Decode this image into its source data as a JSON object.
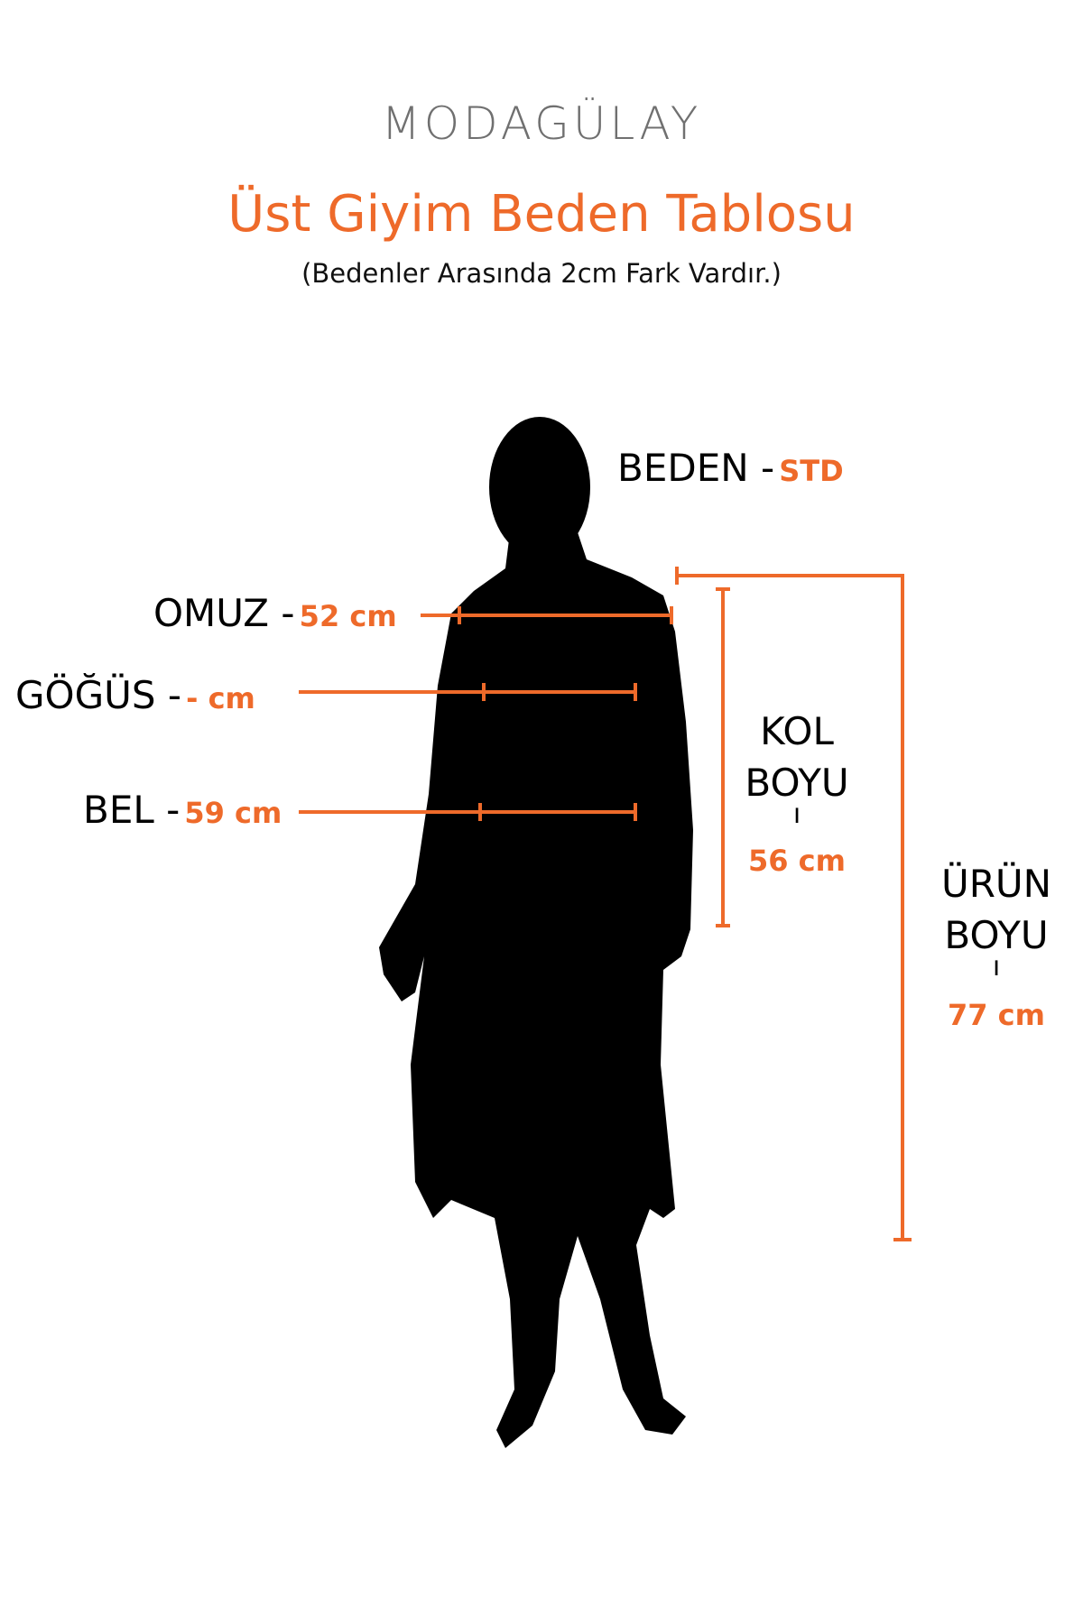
{
  "brand": {
    "logo_text": "MODAGÜLAY"
  },
  "header": {
    "title": "Üst Giyim Beden Tablosu",
    "subtitle": "(Bedenler Arasında 2cm Fark Vardır.)"
  },
  "size": {
    "label": "BEDEN -",
    "value": "STD"
  },
  "measurements": [
    {
      "label": "OMUZ -",
      "value": "52 cm"
    },
    {
      "label": "GÖĞÜS -",
      "value": "- cm"
    },
    {
      "label": "BEL -",
      "value": "59 cm"
    }
  ],
  "sleeve": {
    "line1": "KOL",
    "line2": "BOYU",
    "separator": "ı",
    "value": "56 cm"
  },
  "length": {
    "line1": "ÜRÜN",
    "line2": "BOYU",
    "separator": "ı",
    "value": "77 cm"
  },
  "colors": {
    "accent": "#ee6a2a",
    "text": "#000000",
    "logo": "#707070"
  }
}
